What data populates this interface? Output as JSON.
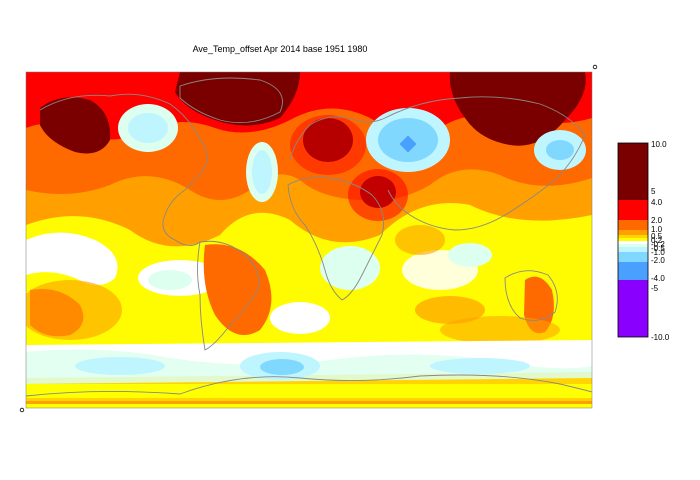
{
  "title": "Ave_Temp_offset Apr 2014  base 1951 1980",
  "colors": {
    "band_10_4": "#7a0000",
    "band_4_2": "#ff0000",
    "band_2_1": "#ff6a00",
    "band_1_05": "#ffa000",
    "band_05_02": "#ffd400",
    "band_02_0": "#ffff00",
    "neutral": "#ffffff",
    "band_0_m05": "#ddfff0",
    "band_m05_m1": "#bff5ff",
    "band_m1_m2": "#80d8ff",
    "band_m2_m4": "#4aa0ff",
    "band_m4_m10": "#8a00ff",
    "coastline": "#888888"
  },
  "legend": {
    "labels": [
      "10.0",
      "5",
      "4.0",
      "2.0",
      "1.0",
      "0.5",
      "0.2",
      "-0.2",
      "-0.5",
      "-1.0",
      "-2.0",
      "-4.0",
      "-5",
      "-10.0"
    ]
  }
}
